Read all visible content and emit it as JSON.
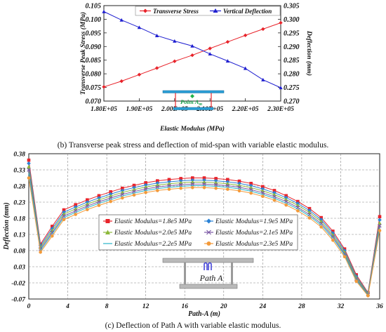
{
  "chart_data": [
    {
      "id": "b",
      "type": "line",
      "caption": "(b) Transverse peak stress and deflection of mid-span with variable elastic modulus.",
      "xlabel": "Elastic Modulus (MPa)",
      "ylabel_left": "Transverse Peak Stress (MPa)",
      "ylabel_right": "Deflection (mm)",
      "x": [
        180000,
        185000,
        190000,
        195000,
        200000,
        205000,
        210000,
        215000,
        220000,
        225000,
        230000
      ],
      "x_ticks": [
        180000,
        190000,
        200000,
        210000,
        220000,
        230000
      ],
      "x_tick_labels": [
        "1.80E+05",
        "1.90E+05",
        "2.00E+05",
        "2.10E+05",
        "2.20E+05",
        "2.30E+05"
      ],
      "xlim": [
        180000,
        230000
      ],
      "ylim_left": [
        0.07,
        0.105
      ],
      "ylim_right": [
        0.27,
        0.305
      ],
      "y_ticks_left": [
        "0.070",
        "0.075",
        "0.080",
        "0.085",
        "0.090",
        "0.095",
        "0.100",
        "0.105"
      ],
      "y_ticks_right": [
        "0.270",
        "0.275",
        "0.280",
        "0.285",
        "0.290",
        "0.295",
        "0.300",
        "0.305"
      ],
      "series": [
        {
          "name": "Transverse Stress",
          "axis": "left",
          "color": "#e8232a",
          "marker": "diamond",
          "values": [
            0.0752,
            0.0773,
            0.0797,
            0.0821,
            0.0846,
            0.0868,
            0.0893,
            0.0917,
            0.0941,
            0.0964,
            0.0987
          ]
        },
        {
          "name": "Vertical Deflection",
          "axis": "right",
          "color": "#1f1fd0",
          "marker": "triangle",
          "values": [
            0.3028,
            0.2997,
            0.297,
            0.294,
            0.292,
            0.2902,
            0.2873,
            0.2847,
            0.282,
            0.2778,
            0.2749
          ]
        }
      ],
      "inset_label": "Point A",
      "inset_label_sub": "m",
      "legend_position": "top"
    },
    {
      "id": "c",
      "type": "line",
      "caption": "(c) Deflection of Path A with variable elastic modulus.",
      "xlabel": "Path-A (m)",
      "ylabel": "Deflection (mm)",
      "xlim": [
        0,
        36
      ],
      "ylim": [
        -0.07,
        0.38
      ],
      "x_ticks": [
        0,
        4,
        8,
        12,
        16,
        20,
        24,
        28,
        32,
        36
      ],
      "y_ticks": [
        -0.07,
        -0.02,
        0.03,
        0.08,
        0.13,
        0.18,
        0.23,
        0.28,
        0.33,
        0.38
      ],
      "y_tick_labels": [
        "-0.07",
        "-0.02",
        "0.03",
        "0.08",
        "0.13",
        "0.18",
        "0.23",
        "0.28",
        "0.33",
        "0.38"
      ],
      "x": [
        0,
        1.2,
        2.4,
        3.6,
        4.8,
        6,
        7.2,
        8.4,
        9.6,
        10.8,
        12,
        13.2,
        14.4,
        15.6,
        16.8,
        18,
        19.2,
        20.4,
        21.6,
        22.8,
        24,
        25.2,
        26.4,
        27.6,
        28.8,
        30,
        31.2,
        32.4,
        33.6,
        34.8,
        36
      ],
      "series": [
        {
          "name": "Elastic Modulus=1.8e5 MPa",
          "color": "#e8232a",
          "marker": "square",
          "values": [
            0.36,
            0.1,
            0.155,
            0.206,
            0.222,
            0.237,
            0.25,
            0.262,
            0.273,
            0.282,
            0.29,
            0.296,
            0.3,
            0.303,
            0.305,
            0.305,
            0.303,
            0.3,
            0.295,
            0.288,
            0.278,
            0.266,
            0.25,
            0.232,
            0.21,
            0.182,
            0.14,
            0.085,
            0.005,
            -0.05,
            0.185
          ]
        },
        {
          "name": "Elastic Modulus=1.9e5 MPa",
          "color": "#2a82d6",
          "marker": "diamond",
          "values": [
            0.35,
            0.095,
            0.148,
            0.199,
            0.215,
            0.23,
            0.243,
            0.255,
            0.266,
            0.275,
            0.283,
            0.289,
            0.293,
            0.296,
            0.298,
            0.298,
            0.296,
            0.293,
            0.288,
            0.281,
            0.271,
            0.259,
            0.244,
            0.226,
            0.204,
            0.176,
            0.134,
            0.08,
            0.0,
            -0.052,
            0.175
          ]
        },
        {
          "name": "Elastic Modulus=2.0e5 MPa",
          "color": "#8cb83a",
          "marker": "triangle",
          "values": [
            0.34,
            0.09,
            0.142,
            0.193,
            0.209,
            0.224,
            0.237,
            0.249,
            0.26,
            0.269,
            0.277,
            0.283,
            0.287,
            0.29,
            0.292,
            0.292,
            0.29,
            0.287,
            0.282,
            0.275,
            0.265,
            0.253,
            0.238,
            0.22,
            0.198,
            0.17,
            0.128,
            0.075,
            -0.004,
            -0.054,
            0.165
          ]
        },
        {
          "name": "Elastic Modulus=2.1e5 MPa",
          "color": "#7d5ba6",
          "marker": "cross",
          "values": [
            0.33,
            0.085,
            0.136,
            0.187,
            0.203,
            0.218,
            0.231,
            0.243,
            0.254,
            0.263,
            0.271,
            0.277,
            0.281,
            0.284,
            0.286,
            0.286,
            0.284,
            0.281,
            0.276,
            0.269,
            0.259,
            0.247,
            0.232,
            0.214,
            0.192,
            0.164,
            0.123,
            0.07,
            -0.008,
            -0.056,
            0.157
          ]
        },
        {
          "name": "Elastic Modulus=2.2e5 MPa",
          "color": "#29b4c8",
          "marker": "line",
          "values": [
            0.32,
            0.08,
            0.131,
            0.182,
            0.198,
            0.213,
            0.226,
            0.238,
            0.249,
            0.258,
            0.266,
            0.272,
            0.276,
            0.279,
            0.281,
            0.281,
            0.279,
            0.276,
            0.271,
            0.264,
            0.254,
            0.242,
            0.227,
            0.209,
            0.187,
            0.159,
            0.118,
            0.066,
            -0.011,
            -0.058,
            0.15
          ]
        },
        {
          "name": "Elastic Modulus=2.3e5 MPa",
          "color": "#f39a3a",
          "marker": "circle",
          "values": [
            0.305,
            0.075,
            0.125,
            0.176,
            0.192,
            0.207,
            0.22,
            0.232,
            0.243,
            0.252,
            0.26,
            0.266,
            0.27,
            0.273,
            0.275,
            0.275,
            0.273,
            0.27,
            0.265,
            0.258,
            0.248,
            0.236,
            0.221,
            0.203,
            0.181,
            0.153,
            0.112,
            0.061,
            -0.015,
            -0.06,
            0.142
          ]
        }
      ],
      "inset_label": "Path A",
      "legend_position": "center",
      "grid": true
    }
  ]
}
